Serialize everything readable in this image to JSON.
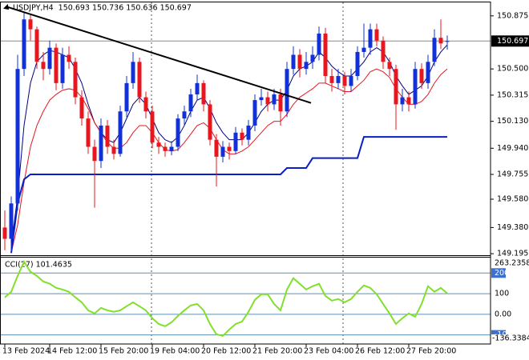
{
  "chart_data": [
    {
      "type": "candlestick",
      "title": "USDJPY,H4  150.693 150.736 150.636 150.697",
      "up_color": "#1230d8",
      "down_color": "#e8161e",
      "open": [
        149.38,
        149.3,
        149.55,
        150.5,
        150.85,
        150.78,
        150.55,
        150.5,
        150.65,
        150.4,
        150.6,
        150.55,
        150.3,
        150.15,
        149.95,
        149.85,
        150.1,
        149.95,
        149.9,
        150.2,
        150.4,
        150.55,
        150.3,
        150.2,
        149.98,
        149.95,
        149.92,
        149.95,
        150.15,
        150.2,
        150.32,
        150.4,
        150.25,
        150.0,
        149.88,
        149.95,
        149.92,
        150.05,
        150.0,
        150.1,
        150.28,
        150.3,
        150.25,
        150.32,
        150.2,
        150.5,
        150.6,
        150.5,
        150.55,
        150.6,
        150.75,
        150.45,
        150.4,
        150.45,
        150.38,
        150.45,
        150.62,
        150.65,
        150.78,
        150.7,
        150.55,
        150.5,
        150.25,
        150.3,
        150.25,
        150.5,
        150.4,
        150.55,
        150.72,
        150.693
      ],
      "high": [
        149.5,
        149.6,
        150.6,
        150.9,
        150.88,
        150.8,
        150.62,
        150.7,
        150.68,
        150.65,
        150.66,
        150.58,
        150.35,
        150.2,
        150.0,
        150.15,
        150.14,
        150.0,
        150.24,
        150.45,
        150.62,
        150.58,
        150.34,
        150.24,
        150.02,
        149.98,
        149.99,
        150.18,
        150.24,
        150.36,
        150.46,
        150.42,
        150.28,
        150.04,
        149.99,
        149.98,
        150.09,
        150.08,
        150.14,
        150.32,
        150.36,
        150.34,
        150.36,
        150.36,
        150.55,
        150.66,
        150.64,
        150.62,
        150.66,
        150.8,
        150.79,
        150.5,
        150.5,
        150.48,
        150.5,
        150.66,
        150.82,
        150.82,
        150.82,
        150.73,
        150.58,
        150.53,
        150.36,
        150.34,
        150.55,
        150.54,
        150.6,
        150.78,
        150.85,
        150.736
      ],
      "low": [
        149.22,
        149.2,
        149.5,
        150.45,
        150.7,
        150.5,
        150.42,
        150.46,
        150.35,
        150.36,
        150.5,
        150.25,
        150.1,
        149.9,
        149.52,
        149.8,
        149.9,
        149.86,
        149.88,
        150.16,
        150.36,
        150.26,
        150.15,
        149.94,
        149.9,
        149.88,
        149.89,
        149.92,
        150.1,
        150.16,
        150.28,
        150.2,
        149.96,
        149.67,
        149.84,
        149.86,
        149.9,
        149.96,
        149.96,
        150.06,
        150.24,
        150.2,
        150.21,
        150.1,
        150.16,
        150.46,
        150.44,
        150.46,
        150.5,
        150.56,
        150.4,
        150.34,
        150.36,
        150.32,
        150.34,
        150.42,
        150.58,
        150.6,
        150.66,
        150.5,
        150.45,
        150.07,
        150.2,
        150.2,
        150.22,
        150.36,
        150.36,
        150.52,
        150.64,
        150.636
      ],
      "close": [
        149.3,
        149.55,
        150.5,
        150.85,
        150.78,
        150.55,
        150.5,
        150.65,
        150.4,
        150.6,
        150.55,
        150.3,
        150.15,
        149.95,
        149.85,
        150.1,
        149.95,
        149.9,
        150.2,
        150.4,
        150.55,
        150.3,
        150.2,
        149.98,
        149.95,
        149.92,
        149.95,
        150.15,
        150.2,
        150.32,
        150.4,
        150.25,
        150.0,
        149.88,
        149.95,
        149.92,
        150.05,
        150.0,
        150.1,
        150.28,
        150.3,
        150.25,
        150.32,
        150.2,
        150.5,
        150.6,
        150.5,
        150.55,
        150.6,
        150.75,
        150.45,
        150.4,
        150.45,
        150.38,
        150.45,
        150.62,
        150.65,
        150.78,
        150.7,
        150.55,
        150.5,
        150.25,
        150.3,
        150.25,
        150.5,
        150.4,
        150.55,
        150.72,
        150.68,
        150.697
      ],
      "series": [
        {
          "color": "#000080",
          "width": 1,
          "values": [
            null,
            149.25,
            149.6,
            150.1,
            150.4,
            150.55,
            150.6,
            150.63,
            150.62,
            150.6,
            150.58,
            150.5,
            150.4,
            150.25,
            150.12,
            150.05,
            150.0,
            149.98,
            150.05,
            150.15,
            150.25,
            150.3,
            150.25,
            150.15,
            150.05,
            150.0,
            149.98,
            150.02,
            150.1,
            150.2,
            150.28,
            150.3,
            150.22,
            150.12,
            150.05,
            150.0,
            150.0,
            150.0,
            150.05,
            150.12,
            150.2,
            150.25,
            150.28,
            150.28,
            150.35,
            150.45,
            150.5,
            150.52,
            150.55,
            150.62,
            150.58,
            150.52,
            150.48,
            150.45,
            150.45,
            150.5,
            150.55,
            150.62,
            150.65,
            150.62,
            150.55,
            150.45,
            150.38,
            150.32,
            150.35,
            150.38,
            150.45,
            150.55,
            150.62,
            150.67
          ]
        },
        {
          "color": "#e8161e",
          "width": 1,
          "values": [
            null,
            149.2,
            149.4,
            149.7,
            149.95,
            150.1,
            150.2,
            150.28,
            150.32,
            150.35,
            150.36,
            150.35,
            150.3,
            150.22,
            150.12,
            150.05,
            149.98,
            149.94,
            149.94,
            149.98,
            150.05,
            150.1,
            150.1,
            150.05,
            149.98,
            149.93,
            149.92,
            149.93,
            149.98,
            150.04,
            150.1,
            150.12,
            150.08,
            150.0,
            149.93,
            149.9,
            149.9,
            149.92,
            149.95,
            150.0,
            150.05,
            150.1,
            150.13,
            150.13,
            150.18,
            150.25,
            150.3,
            150.33,
            150.36,
            150.4,
            150.4,
            150.38,
            150.36,
            150.34,
            150.34,
            150.38,
            150.42,
            150.48,
            150.5,
            150.48,
            150.44,
            150.36,
            150.3,
            150.25,
            150.25,
            150.27,
            150.32,
            150.4,
            150.46,
            150.5
          ]
        },
        {
          "color": "#0a1ec8",
          "width": 2,
          "values": [
            null,
            149.2,
            149.55,
            149.72,
            149.755,
            149.755,
            149.755,
            149.755,
            149.755,
            149.755,
            149.755,
            149.755,
            149.755,
            149.755,
            149.755,
            149.755,
            149.755,
            149.755,
            149.755,
            149.755,
            149.755,
            149.755,
            149.755,
            149.755,
            149.755,
            149.755,
            149.755,
            149.755,
            149.755,
            149.755,
            149.755,
            149.755,
            149.755,
            149.755,
            149.755,
            149.755,
            149.755,
            149.755,
            149.755,
            149.755,
            149.755,
            149.755,
            149.755,
            149.755,
            149.8,
            149.8,
            149.8,
            149.8,
            149.87,
            149.87,
            149.87,
            149.87,
            149.87,
            149.87,
            149.87,
            149.87,
            150.02,
            150.02,
            150.02,
            150.02,
            150.02,
            150.02,
            150.02,
            150.02,
            150.02,
            150.02,
            150.02,
            150.02,
            150.02,
            150.02
          ]
        }
      ],
      "trendline": {
        "x": [
          0.25,
          47.75
        ],
        "y": [
          150.94,
          150.26
        ],
        "color": "#000000"
      },
      "last_price": 150.697,
      "ylim": [
        149.19,
        150.97
      ],
      "yticks": [
        150.875,
        {
          "value": 150.5,
          "label": "150.500"
        },
        150.315,
        {
          "value": 150.13,
          "label": "150.130"
        },
        {
          "value": 149.94,
          "label": "149.940"
        },
        149.755,
        {
          "value": 149.58,
          "label": "149.580"
        },
        {
          "value": 149.38,
          "label": "149.380"
        },
        149.195
      ],
      "xticks": [
        {
          "value": 0,
          "label": "13 Feb 2024"
        },
        {
          "value": 7,
          "label": "14 Feb 12:00"
        },
        {
          "value": 15,
          "label": "15 Feb 20:00"
        },
        {
          "value": 23,
          "label": "19 Feb 04:00"
        },
        {
          "value": 31,
          "label": "20 Feb 12:00"
        },
        {
          "value": 39,
          "label": "21 Feb 20:00"
        },
        {
          "value": 47,
          "label": "23 Feb 04:00"
        },
        {
          "value": 55,
          "label": "26 Feb 12:00"
        },
        {
          "value": 63,
          "label": "27 Feb 20:00"
        }
      ]
    },
    {
      "type": "line",
      "title": "CCI(27) 101.4635",
      "color": "#80e02c",
      "values": [
        82,
        109,
        186,
        255,
        206,
        186,
        159,
        148,
        128,
        120,
        109,
        82,
        58,
        19,
        4,
        31,
        19,
        12,
        19,
        39,
        58,
        39,
        19,
        -19,
        -47,
        -58,
        -39,
        -8,
        19,
        43,
        50,
        19,
        -47,
        -97,
        -105,
        -74,
        -47,
        -35,
        12,
        70,
        97,
        97,
        50,
        19,
        120,
        175,
        148,
        120,
        136,
        148,
        89,
        66,
        74,
        58,
        74,
        109,
        140,
        128,
        97,
        50,
        4,
        -47,
        -19,
        4,
        -12,
        50,
        136,
        109,
        128,
        101.4635
      ],
      "ylim": [
        -136.3384,
        263.2358
      ],
      "yticks": [
        200,
        100,
        {
          "value": 0,
          "label": "0.00"
        },
        -100
      ]
    }
  ]
}
